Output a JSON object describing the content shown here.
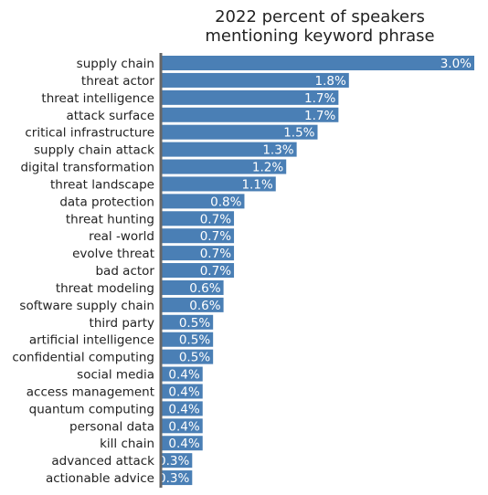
{
  "chart_data": {
    "type": "bar",
    "orientation": "horizontal",
    "title_lines": [
      "2022 percent of speakers",
      "mentioning keyword phrase"
    ],
    "value_suffix": "%",
    "categories": [
      "supply chain",
      "threat actor",
      "threat intelligence",
      "attack surface",
      "critical infrastructure",
      "supply chain attack",
      "digital transformation",
      "threat landscape",
      "data protection",
      "threat hunting",
      "real -world",
      "evolve threat",
      "bad actor",
      "threat modeling",
      "software supply chain",
      "third party",
      "artificial intelligence",
      "confidential computing",
      "social media",
      "access management",
      "quantum computing",
      "personal data",
      "kill chain",
      "advanced attack",
      "actionable advice"
    ],
    "values": [
      3.0,
      1.8,
      1.7,
      1.7,
      1.5,
      1.3,
      1.2,
      1.1,
      0.8,
      0.7,
      0.7,
      0.7,
      0.7,
      0.6,
      0.6,
      0.5,
      0.5,
      0.5,
      0.4,
      0.4,
      0.4,
      0.4,
      0.4,
      0.3,
      0.3
    ],
    "data_labels": [
      "3.0%",
      "1.8%",
      "1.7%",
      "1.7%",
      "1.5%",
      "1.3%",
      "1.2%",
      "1.1%",
      "0.8%",
      "0.7%",
      "0.7%",
      "0.7%",
      "0.7%",
      "0.6%",
      "0.6%",
      "0.5%",
      "0.5%",
      "0.5%",
      "0.4%",
      "0.4%",
      "0.4%",
      "0.4%",
      "0.4%",
      "0.3%",
      "0.3%"
    ],
    "xlim": [
      0,
      3.0
    ],
    "bar_color": "#4a7fb5",
    "axis_color": "#666666",
    "label_color": "#ffffff",
    "grid": false,
    "legend": "none"
  }
}
